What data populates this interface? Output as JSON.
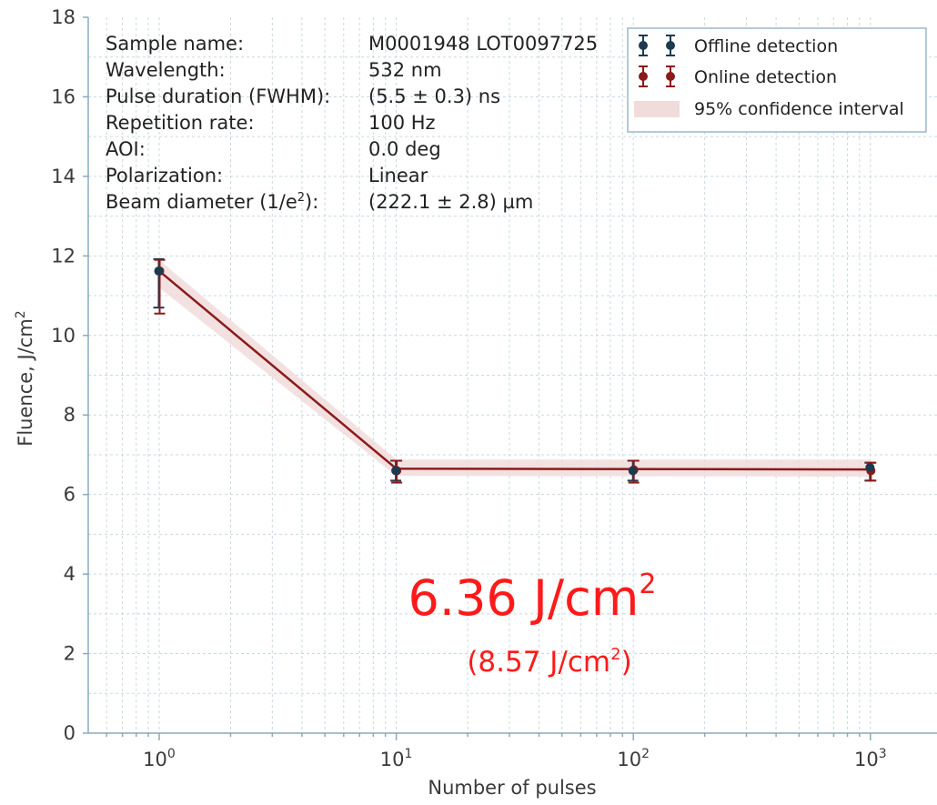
{
  "chart_data": {
    "type": "line",
    "xlabel": "Number of pulses",
    "ylabel": "Fluence, J/cm",
    "ylabel_sup": "2",
    "x_scale": "log",
    "xlim": [
      0.55,
      1300
    ],
    "ylim": [
      0,
      18
    ],
    "grid": true,
    "x_ticks": [
      {
        "base": "10",
        "exp": "0",
        "value": 1
      },
      {
        "base": "10",
        "exp": "1",
        "value": 10
      },
      {
        "base": "10",
        "exp": "2",
        "value": 100
      },
      {
        "base": "10",
        "exp": "3",
        "value": 1000
      }
    ],
    "y_ticks": [
      0,
      2,
      4,
      6,
      8,
      10,
      12,
      14,
      16,
      18
    ],
    "series": [
      {
        "name": "Offline detection",
        "color": "#1d3a4f",
        "points": [
          {
            "x": 1,
            "y": 11.62,
            "err_low": 10.7,
            "err_high": 11.92
          },
          {
            "x": 10,
            "y": 6.6,
            "err_low": 6.35,
            "err_high": 6.85
          },
          {
            "x": 100,
            "y": 6.6,
            "err_low": 6.35,
            "err_high": 6.85
          },
          {
            "x": 1000,
            "y": 6.68,
            "err_low": 6.35,
            "err_high": 6.8
          }
        ]
      },
      {
        "name": "Online detection",
        "color": "#8b1a1a",
        "points": [
          {
            "x": 1,
            "y": 11.62,
            "err_low": 10.55,
            "err_high": 11.9
          },
          {
            "x": 10,
            "y": 6.6,
            "err_low": 6.3,
            "err_high": 6.85
          },
          {
            "x": 100,
            "y": 6.62,
            "err_low": 6.3,
            "err_high": 6.85
          },
          {
            "x": 1000,
            "y": 6.6,
            "err_low": 6.35,
            "err_high": 6.8
          }
        ]
      }
    ],
    "fit_line": {
      "color": "#8b1a1a",
      "points": [
        {
          "x": 1,
          "y": 11.62
        },
        {
          "x": 10,
          "y": 6.65
        },
        {
          "x": 1000,
          "y": 6.63
        }
      ]
    },
    "confidence_band": {
      "name": "95% confidence interval",
      "color": "#f1dcdc",
      "lower": [
        {
          "x": 1,
          "y": 11.2
        },
        {
          "x": 10,
          "y": 6.47
        },
        {
          "x": 1000,
          "y": 6.45
        }
      ],
      "upper": [
        {
          "x": 1,
          "y": 11.9
        },
        {
          "x": 10,
          "y": 6.88
        },
        {
          "x": 1000,
          "y": 6.88
        }
      ]
    },
    "legend": {
      "position": "top-right"
    },
    "info_block": [
      {
        "label": "Sample name:",
        "value": "M0001948 LOT0097725"
      },
      {
        "label": "Wavelength:",
        "value": "532 nm"
      },
      {
        "label": "Pulse duration (FWHM):",
        "value": "(5.5 ± 0.3) ns"
      },
      {
        "label": "Repetition rate:",
        "value": "100 Hz"
      },
      {
        "label": "AOI:",
        "value": "0.0 deg"
      },
      {
        "label": "Polarization:",
        "value": "Linear"
      },
      {
        "label": "Beam diameter (1/e",
        "label_sup": "2",
        "label_tail": "):",
        "value": "(222.1 ± 2.8) µm"
      }
    ],
    "annotations": {
      "main_value": "6.36 J/cm",
      "main_sup": "2",
      "secondary_prefix": "(8.57 J/cm",
      "secondary_sup": "2",
      "secondary_suffix": ")",
      "color": "#ff1a1a"
    }
  }
}
